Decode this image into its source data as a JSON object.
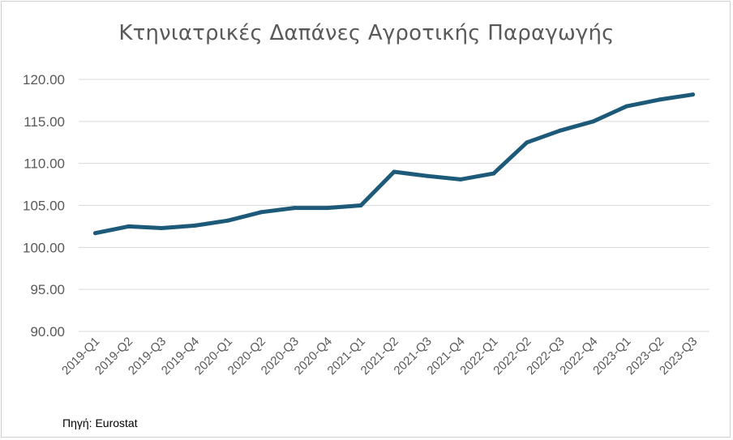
{
  "chart_data": {
    "type": "line",
    "title": "Κτηνιατρικές Δαπάνες Αγροτικής Παραγωγής",
    "xlabel": "",
    "ylabel": "",
    "categories": [
      "2019-Q1",
      "2019-Q2",
      "2019-Q3",
      "2019-Q4",
      "2020-Q1",
      "2020-Q2",
      "2020-Q3",
      "2020-Q4",
      "2021-Q1",
      "2021-Q2",
      "2021-Q3",
      "2021-Q4",
      "2022-Q1",
      "2022-Q2",
      "2022-Q3",
      "2022-Q4",
      "2023-Q1",
      "2023-Q2",
      "2023-Q3"
    ],
    "series": [
      {
        "values": [
          101.7,
          102.5,
          102.3,
          102.6,
          103.2,
          104.2,
          104.7,
          104.7,
          105.0,
          109.0,
          108.5,
          108.1,
          108.8,
          112.5,
          113.9,
          115.0,
          116.8,
          117.6,
          118.2
        ]
      }
    ],
    "ylim": [
      90,
      120
    ],
    "yticks": [
      "90.00",
      "95.00",
      "100.00",
      "105.00",
      "110.00",
      "115.00",
      "120.00"
    ],
    "grid": true,
    "line_color": "#1d5a7a",
    "grid_color": "#d9d9d9"
  },
  "footer": {
    "source": "Πηγή: Eurostat"
  }
}
